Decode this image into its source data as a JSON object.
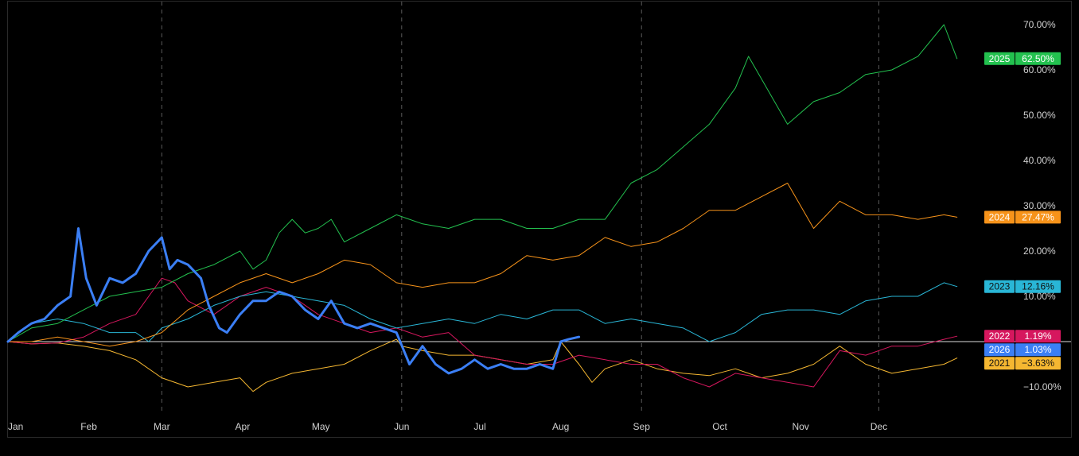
{
  "chart_data": {
    "type": "line",
    "title": "",
    "xlabel": "",
    "ylabel": "",
    "x_tick_labels": [
      "Jan",
      "Feb",
      "Mar",
      "Apr",
      "May",
      "Jun",
      "Jul",
      "Aug",
      "Sep",
      "Oct",
      "Nov",
      "Dec"
    ],
    "x_tick_positions": [
      1,
      32,
      60,
      91,
      121,
      152,
      182,
      213,
      244,
      274,
      305,
      335
    ],
    "vertical_gridlines_at": [
      "Mar",
      "Jun",
      "Sep",
      "Dec"
    ],
    "x_range": [
      1,
      366
    ],
    "y_ticks": [
      -10,
      10,
      20,
      30,
      40,
      50,
      60,
      70
    ],
    "y_tick_labels": [
      "−10.00%",
      "10.00%",
      "20.00%",
      "30.00%",
      "40.00%",
      "50.00%",
      "60.00%",
      "70.00%"
    ],
    "ylim": [
      -15,
      75
    ],
    "baseline": 0,
    "legend_position": "right",
    "series": [
      {
        "name": "2021",
        "color": "#f5b731",
        "last_label": "−3.63%",
        "points": [
          [
            1,
            0
          ],
          [
            10,
            -0.5
          ],
          [
            20,
            -0.3
          ],
          [
            30,
            -1
          ],
          [
            40,
            -2
          ],
          [
            50,
            -4
          ],
          [
            60,
            -8
          ],
          [
            70,
            -10
          ],
          [
            80,
            -9
          ],
          [
            90,
            -8
          ],
          [
            95,
            -11
          ],
          [
            100,
            -9
          ],
          [
            110,
            -7
          ],
          [
            120,
            -6
          ],
          [
            130,
            -5
          ],
          [
            140,
            -2
          ],
          [
            150,
            0.5
          ],
          [
            152,
            -1
          ],
          [
            160,
            -2
          ],
          [
            170,
            -3
          ],
          [
            180,
            -3
          ],
          [
            190,
            -4
          ],
          [
            200,
            -5
          ],
          [
            210,
            -4
          ],
          [
            213,
            0
          ],
          [
            220,
            -5
          ],
          [
            225,
            -9
          ],
          [
            230,
            -6
          ],
          [
            240,
            -4
          ],
          [
            250,
            -6
          ],
          [
            260,
            -7
          ],
          [
            270,
            -7.5
          ],
          [
            280,
            -6
          ],
          [
            290,
            -8
          ],
          [
            300,
            -7
          ],
          [
            310,
            -5
          ],
          [
            320,
            -1
          ],
          [
            330,
            -5
          ],
          [
            340,
            -7
          ],
          [
            350,
            -6
          ],
          [
            360,
            -5
          ],
          [
            365,
            -3.63
          ]
        ]
      },
      {
        "name": "2022",
        "color": "#d6175e",
        "last_label": "1.19%",
        "points": [
          [
            1,
            0
          ],
          [
            10,
            -0.5
          ],
          [
            20,
            -0.3
          ],
          [
            30,
            1
          ],
          [
            40,
            4
          ],
          [
            50,
            6
          ],
          [
            55,
            10
          ],
          [
            60,
            14
          ],
          [
            65,
            13
          ],
          [
            70,
            9
          ],
          [
            80,
            6
          ],
          [
            90,
            10
          ],
          [
            100,
            12
          ],
          [
            110,
            10
          ],
          [
            120,
            6
          ],
          [
            130,
            4
          ],
          [
            140,
            2
          ],
          [
            150,
            3
          ],
          [
            160,
            1
          ],
          [
            170,
            2
          ],
          [
            180,
            -3
          ],
          [
            190,
            -4
          ],
          [
            200,
            -5
          ],
          [
            210,
            -5
          ],
          [
            220,
            -3
          ],
          [
            230,
            -4
          ],
          [
            240,
            -5
          ],
          [
            250,
            -5
          ],
          [
            260,
            -8
          ],
          [
            270,
            -10
          ],
          [
            280,
            -7
          ],
          [
            290,
            -8
          ],
          [
            300,
            -9
          ],
          [
            310,
            -10
          ],
          [
            320,
            -2
          ],
          [
            330,
            -3
          ],
          [
            340,
            -1
          ],
          [
            350,
            -1
          ],
          [
            360,
            0.5
          ],
          [
            365,
            1.19
          ]
        ]
      },
      {
        "name": "2023",
        "color": "#29b6d6",
        "last_label": "12.16%",
        "points": [
          [
            1,
            0
          ],
          [
            10,
            4
          ],
          [
            20,
            5
          ],
          [
            30,
            4
          ],
          [
            40,
            2
          ],
          [
            50,
            2
          ],
          [
            55,
            0
          ],
          [
            60,
            3
          ],
          [
            70,
            5
          ],
          [
            80,
            8
          ],
          [
            90,
            10
          ],
          [
            100,
            11
          ],
          [
            110,
            10
          ],
          [
            120,
            9
          ],
          [
            130,
            8
          ],
          [
            140,
            5
          ],
          [
            150,
            3
          ],
          [
            160,
            4
          ],
          [
            170,
            5
          ],
          [
            180,
            4
          ],
          [
            190,
            6
          ],
          [
            200,
            5
          ],
          [
            210,
            7
          ],
          [
            220,
            7
          ],
          [
            230,
            4
          ],
          [
            240,
            5
          ],
          [
            250,
            4
          ],
          [
            260,
            3
          ],
          [
            270,
            0
          ],
          [
            275,
            1
          ],
          [
            280,
            2
          ],
          [
            290,
            6
          ],
          [
            300,
            7
          ],
          [
            310,
            7
          ],
          [
            320,
            6
          ],
          [
            330,
            9
          ],
          [
            340,
            10
          ],
          [
            350,
            10
          ],
          [
            360,
            13
          ],
          [
            365,
            12.16
          ]
        ]
      },
      {
        "name": "2024",
        "color": "#f7931a",
        "last_label": "27.47%",
        "points": [
          [
            1,
            0
          ],
          [
            10,
            0
          ],
          [
            20,
            1
          ],
          [
            30,
            0
          ],
          [
            40,
            -1
          ],
          [
            50,
            0
          ],
          [
            60,
            2
          ],
          [
            70,
            7
          ],
          [
            80,
            10
          ],
          [
            90,
            13
          ],
          [
            100,
            15
          ],
          [
            110,
            13
          ],
          [
            120,
            15
          ],
          [
            130,
            18
          ],
          [
            140,
            17
          ],
          [
            150,
            13
          ],
          [
            160,
            12
          ],
          [
            170,
            13
          ],
          [
            180,
            13
          ],
          [
            190,
            15
          ],
          [
            200,
            19
          ],
          [
            210,
            18
          ],
          [
            220,
            19
          ],
          [
            230,
            23
          ],
          [
            240,
            21
          ],
          [
            250,
            22
          ],
          [
            260,
            25
          ],
          [
            270,
            29
          ],
          [
            280,
            29
          ],
          [
            290,
            32
          ],
          [
            300,
            35
          ],
          [
            305,
            30
          ],
          [
            310,
            25
          ],
          [
            320,
            31
          ],
          [
            330,
            28
          ],
          [
            340,
            28
          ],
          [
            350,
            27
          ],
          [
            360,
            28
          ],
          [
            365,
            27.47
          ]
        ]
      },
      {
        "name": "2025",
        "color": "#23c14f",
        "last_label": "62.50%",
        "points": [
          [
            1,
            0
          ],
          [
            10,
            3
          ],
          [
            20,
            4
          ],
          [
            30,
            7
          ],
          [
            40,
            10
          ],
          [
            50,
            11
          ],
          [
            60,
            12
          ],
          [
            70,
            15
          ],
          [
            80,
            17
          ],
          [
            90,
            20
          ],
          [
            95,
            16
          ],
          [
            100,
            18
          ],
          [
            105,
            24
          ],
          [
            110,
            27
          ],
          [
            115,
            24
          ],
          [
            120,
            25
          ],
          [
            125,
            27
          ],
          [
            130,
            22
          ],
          [
            140,
            25
          ],
          [
            150,
            28
          ],
          [
            160,
            26
          ],
          [
            170,
            25
          ],
          [
            180,
            27
          ],
          [
            190,
            27
          ],
          [
            200,
            25
          ],
          [
            210,
            25
          ],
          [
            220,
            27
          ],
          [
            230,
            27
          ],
          [
            240,
            35
          ],
          [
            250,
            38
          ],
          [
            260,
            43
          ],
          [
            270,
            48
          ],
          [
            280,
            56
          ],
          [
            285,
            63
          ],
          [
            290,
            58
          ],
          [
            300,
            48
          ],
          [
            310,
            53
          ],
          [
            320,
            55
          ],
          [
            330,
            59
          ],
          [
            340,
            60
          ],
          [
            350,
            63
          ],
          [
            360,
            70
          ],
          [
            365,
            62.5
          ]
        ]
      },
      {
        "name": "2026",
        "color": "#3b7ff5",
        "last_label": "1.03%",
        "points": [
          [
            1,
            0
          ],
          [
            5,
            2
          ],
          [
            10,
            4
          ],
          [
            15,
            5
          ],
          [
            20,
            8
          ],
          [
            25,
            10
          ],
          [
            28,
            25
          ],
          [
            31,
            14
          ],
          [
            35,
            8
          ],
          [
            40,
            14
          ],
          [
            45,
            13
          ],
          [
            50,
            15
          ],
          [
            55,
            20
          ],
          [
            60,
            23
          ],
          [
            63,
            16
          ],
          [
            66,
            18
          ],
          [
            70,
            17
          ],
          [
            75,
            14
          ],
          [
            78,
            8
          ],
          [
            82,
            3
          ],
          [
            85,
            2
          ],
          [
            90,
            6
          ],
          [
            95,
            9
          ],
          [
            100,
            9
          ],
          [
            105,
            11
          ],
          [
            110,
            10
          ],
          [
            115,
            7
          ],
          [
            120,
            5
          ],
          [
            125,
            9
          ],
          [
            130,
            4
          ],
          [
            135,
            3
          ],
          [
            140,
            4
          ],
          [
            145,
            3
          ],
          [
            150,
            2
          ],
          [
            155,
            -5
          ],
          [
            160,
            -1
          ],
          [
            165,
            -5
          ],
          [
            170,
            -7
          ],
          [
            175,
            -6
          ],
          [
            180,
            -4
          ],
          [
            185,
            -6
          ],
          [
            190,
            -5
          ],
          [
            195,
            -6
          ],
          [
            200,
            -6
          ],
          [
            205,
            -5
          ],
          [
            210,
            -6
          ],
          [
            213,
            0
          ],
          [
            216,
            0.5
          ],
          [
            220,
            1.03
          ]
        ]
      }
    ]
  }
}
